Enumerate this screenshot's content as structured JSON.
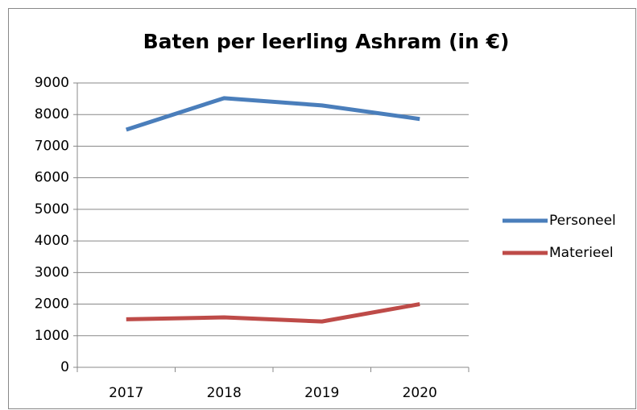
{
  "chart_data": {
    "type": "line",
    "title": "Baten per leerling Ashram (in €)",
    "categories": [
      "2017",
      "2018",
      "2019",
      "2020"
    ],
    "series": [
      {
        "name": "Personeel",
        "color": "#4a7ebb",
        "values": [
          7520,
          8520,
          8290,
          7860
        ]
      },
      {
        "name": "Materieel",
        "color": "#be4b48",
        "values": [
          1520,
          1580,
          1450,
          2000
        ]
      }
    ],
    "ylim": [
      0,
      9000
    ],
    "yticks": [
      0,
      1000,
      2000,
      3000,
      4000,
      5000,
      6000,
      7000,
      8000,
      9000
    ],
    "grid": true,
    "legend": "right"
  }
}
